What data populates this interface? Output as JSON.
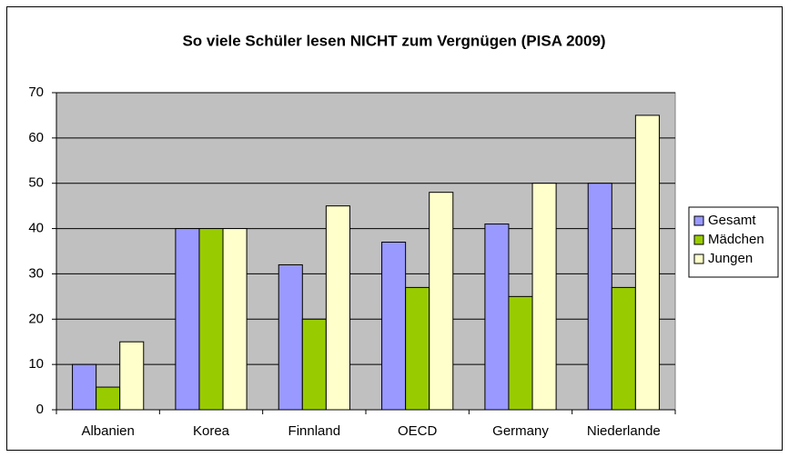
{
  "chart_data": {
    "type": "bar",
    "title": "So viele Schüler lesen NICHT zum Vergnügen (PISA 2009)",
    "categories": [
      "Albanien",
      "Korea",
      "Finnland",
      "OECD",
      "Germany",
      "Niederlande"
    ],
    "series": [
      {
        "name": "Gesamt",
        "color": "#9999ff",
        "values": [
          10,
          40,
          32,
          37,
          41,
          50
        ]
      },
      {
        "name": "Mädchen",
        "color": "#99cc00",
        "values": [
          5,
          40,
          20,
          27,
          25,
          27
        ]
      },
      {
        "name": "Jungen",
        "color": "#ffffcc",
        "values": [
          15,
          40,
          45,
          48,
          50,
          65
        ]
      }
    ],
    "ylim": [
      0,
      70
    ],
    "yticks": [
      0,
      10,
      20,
      30,
      40,
      50,
      60,
      70
    ],
    "grid": true,
    "legend": "right"
  }
}
